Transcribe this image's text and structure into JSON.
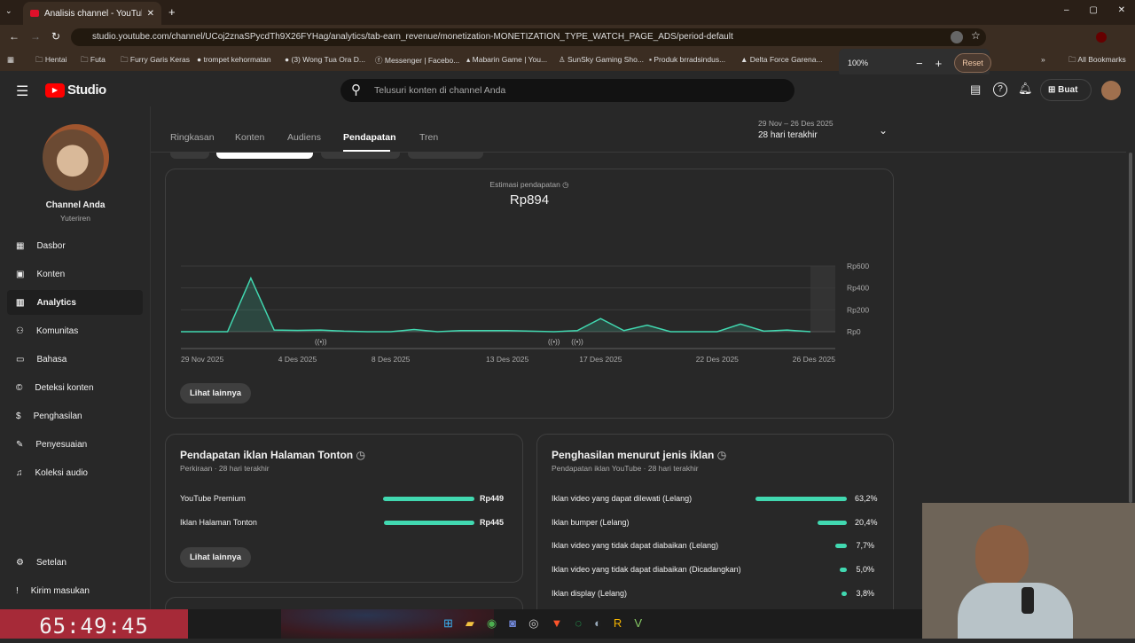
{
  "browser": {
    "tab_title": "Analisis channel - YouTube Studio",
    "url": "studio.youtube.com/channel/UCoj2znaSPycdTh9X26FYHag/analytics/tab-earn_revenue/monetization-MONETIZATION_TYPE_WATCH_PAGE_ADS/period-default",
    "bookmarks": [
      "Hentai",
      "Futa",
      "Furry Garis Keras",
      "trompet kehormatan",
      "(3) Wong Tua Ora D...",
      "Messenger | Facebo...",
      "Mabarin Game | You...",
      "SunSky Gaming Sho...",
      "Produk brradsindus...",
      "Delta Force Garena..."
    ],
    "all_bookmarks": "All Bookmarks",
    "zoom": {
      "level": "100%",
      "minus": "−",
      "plus": "+",
      "reset": "Reset"
    }
  },
  "header": {
    "logo": "Studio",
    "search_placeholder": "Telusuri konten di channel Anda",
    "create": "Buat"
  },
  "channel": {
    "name": "Channel Anda",
    "handle": "Yuteriren"
  },
  "sidebar": {
    "items": [
      {
        "label": "Dasbor"
      },
      {
        "label": "Konten"
      },
      {
        "label": "Analytics"
      },
      {
        "label": "Komunitas"
      },
      {
        "label": "Bahasa"
      },
      {
        "label": "Deteksi konten"
      },
      {
        "label": "Penghasilan"
      },
      {
        "label": "Penyesuaian"
      },
      {
        "label": "Koleksi audio"
      }
    ],
    "settings": "Setelan",
    "feedback": "Kirim masukan"
  },
  "tabs": [
    "Ringkasan",
    "Konten",
    "Audiens",
    "Pendapatan",
    "Tren"
  ],
  "period": {
    "range": "29 Nov – 26 Des 2025",
    "label": "28 hari terakhir"
  },
  "revenue": {
    "label": "Estimasi pendapatan",
    "value": "Rp894",
    "more": "Lihat lainnya"
  },
  "chart_data": {
    "type": "area",
    "title": "Estimasi pendapatan",
    "ylim": [
      0,
      600
    ],
    "y_ticks": [
      "Rp600",
      "Rp400",
      "Rp200",
      "Rp0"
    ],
    "y_tick_values": [
      600,
      400,
      200,
      0
    ],
    "x_ticks": [
      "29 Nov 2025",
      "4 Des 2025",
      "8 Des 2025",
      "13 Des 2025",
      "17 Des 2025",
      "22 Des 2025",
      "26 Des 2025"
    ],
    "x_tick_index": [
      0,
      5,
      9,
      14,
      18,
      23,
      27
    ],
    "values": [
      0,
      0,
      0,
      490,
      15,
      12,
      15,
      5,
      0,
      0,
      20,
      0,
      10,
      10,
      10,
      5,
      0,
      10,
      120,
      10,
      60,
      0,
      0,
      0,
      70,
      5,
      15,
      0
    ],
    "event_markers_index": [
      6,
      16,
      17
    ],
    "color": "#41d8b0"
  },
  "watch_page": {
    "title": "Pendapatan iklan Halaman Tonton",
    "sub": "Perkiraan · 28 hari terakhir",
    "rows": [
      {
        "label": "YouTube Premium",
        "value": "Rp449",
        "frac": 1.0
      },
      {
        "label": "Iklan Halaman Tonton",
        "value": "Rp445",
        "frac": 0.99
      }
    ],
    "more": "Lihat lainnya"
  },
  "ad_types": {
    "title": "Penghasilan menurut jenis iklan",
    "sub": "Pendapatan iklan YouTube · 28 hari terakhir",
    "rows": [
      {
        "label": "Iklan video yang dapat dilewati (Lelang)",
        "value": "63,2%",
        "pct": 63.2
      },
      {
        "label": "Iklan bumper (Lelang)",
        "value": "20,4%",
        "pct": 20.4
      },
      {
        "label": "Iklan video yang tidak dapat diabaikan (Lelang)",
        "value": "7,7%",
        "pct": 7.7
      },
      {
        "label": "Iklan video yang tidak dapat diabaikan (Dicadangkan)",
        "value": "5,0%",
        "pct": 5.0
      },
      {
        "label": "Iklan display (Lelang)",
        "value": "3,8%",
        "pct": 3.8
      }
    ]
  },
  "overlay": {
    "timer": "65:49:45"
  }
}
